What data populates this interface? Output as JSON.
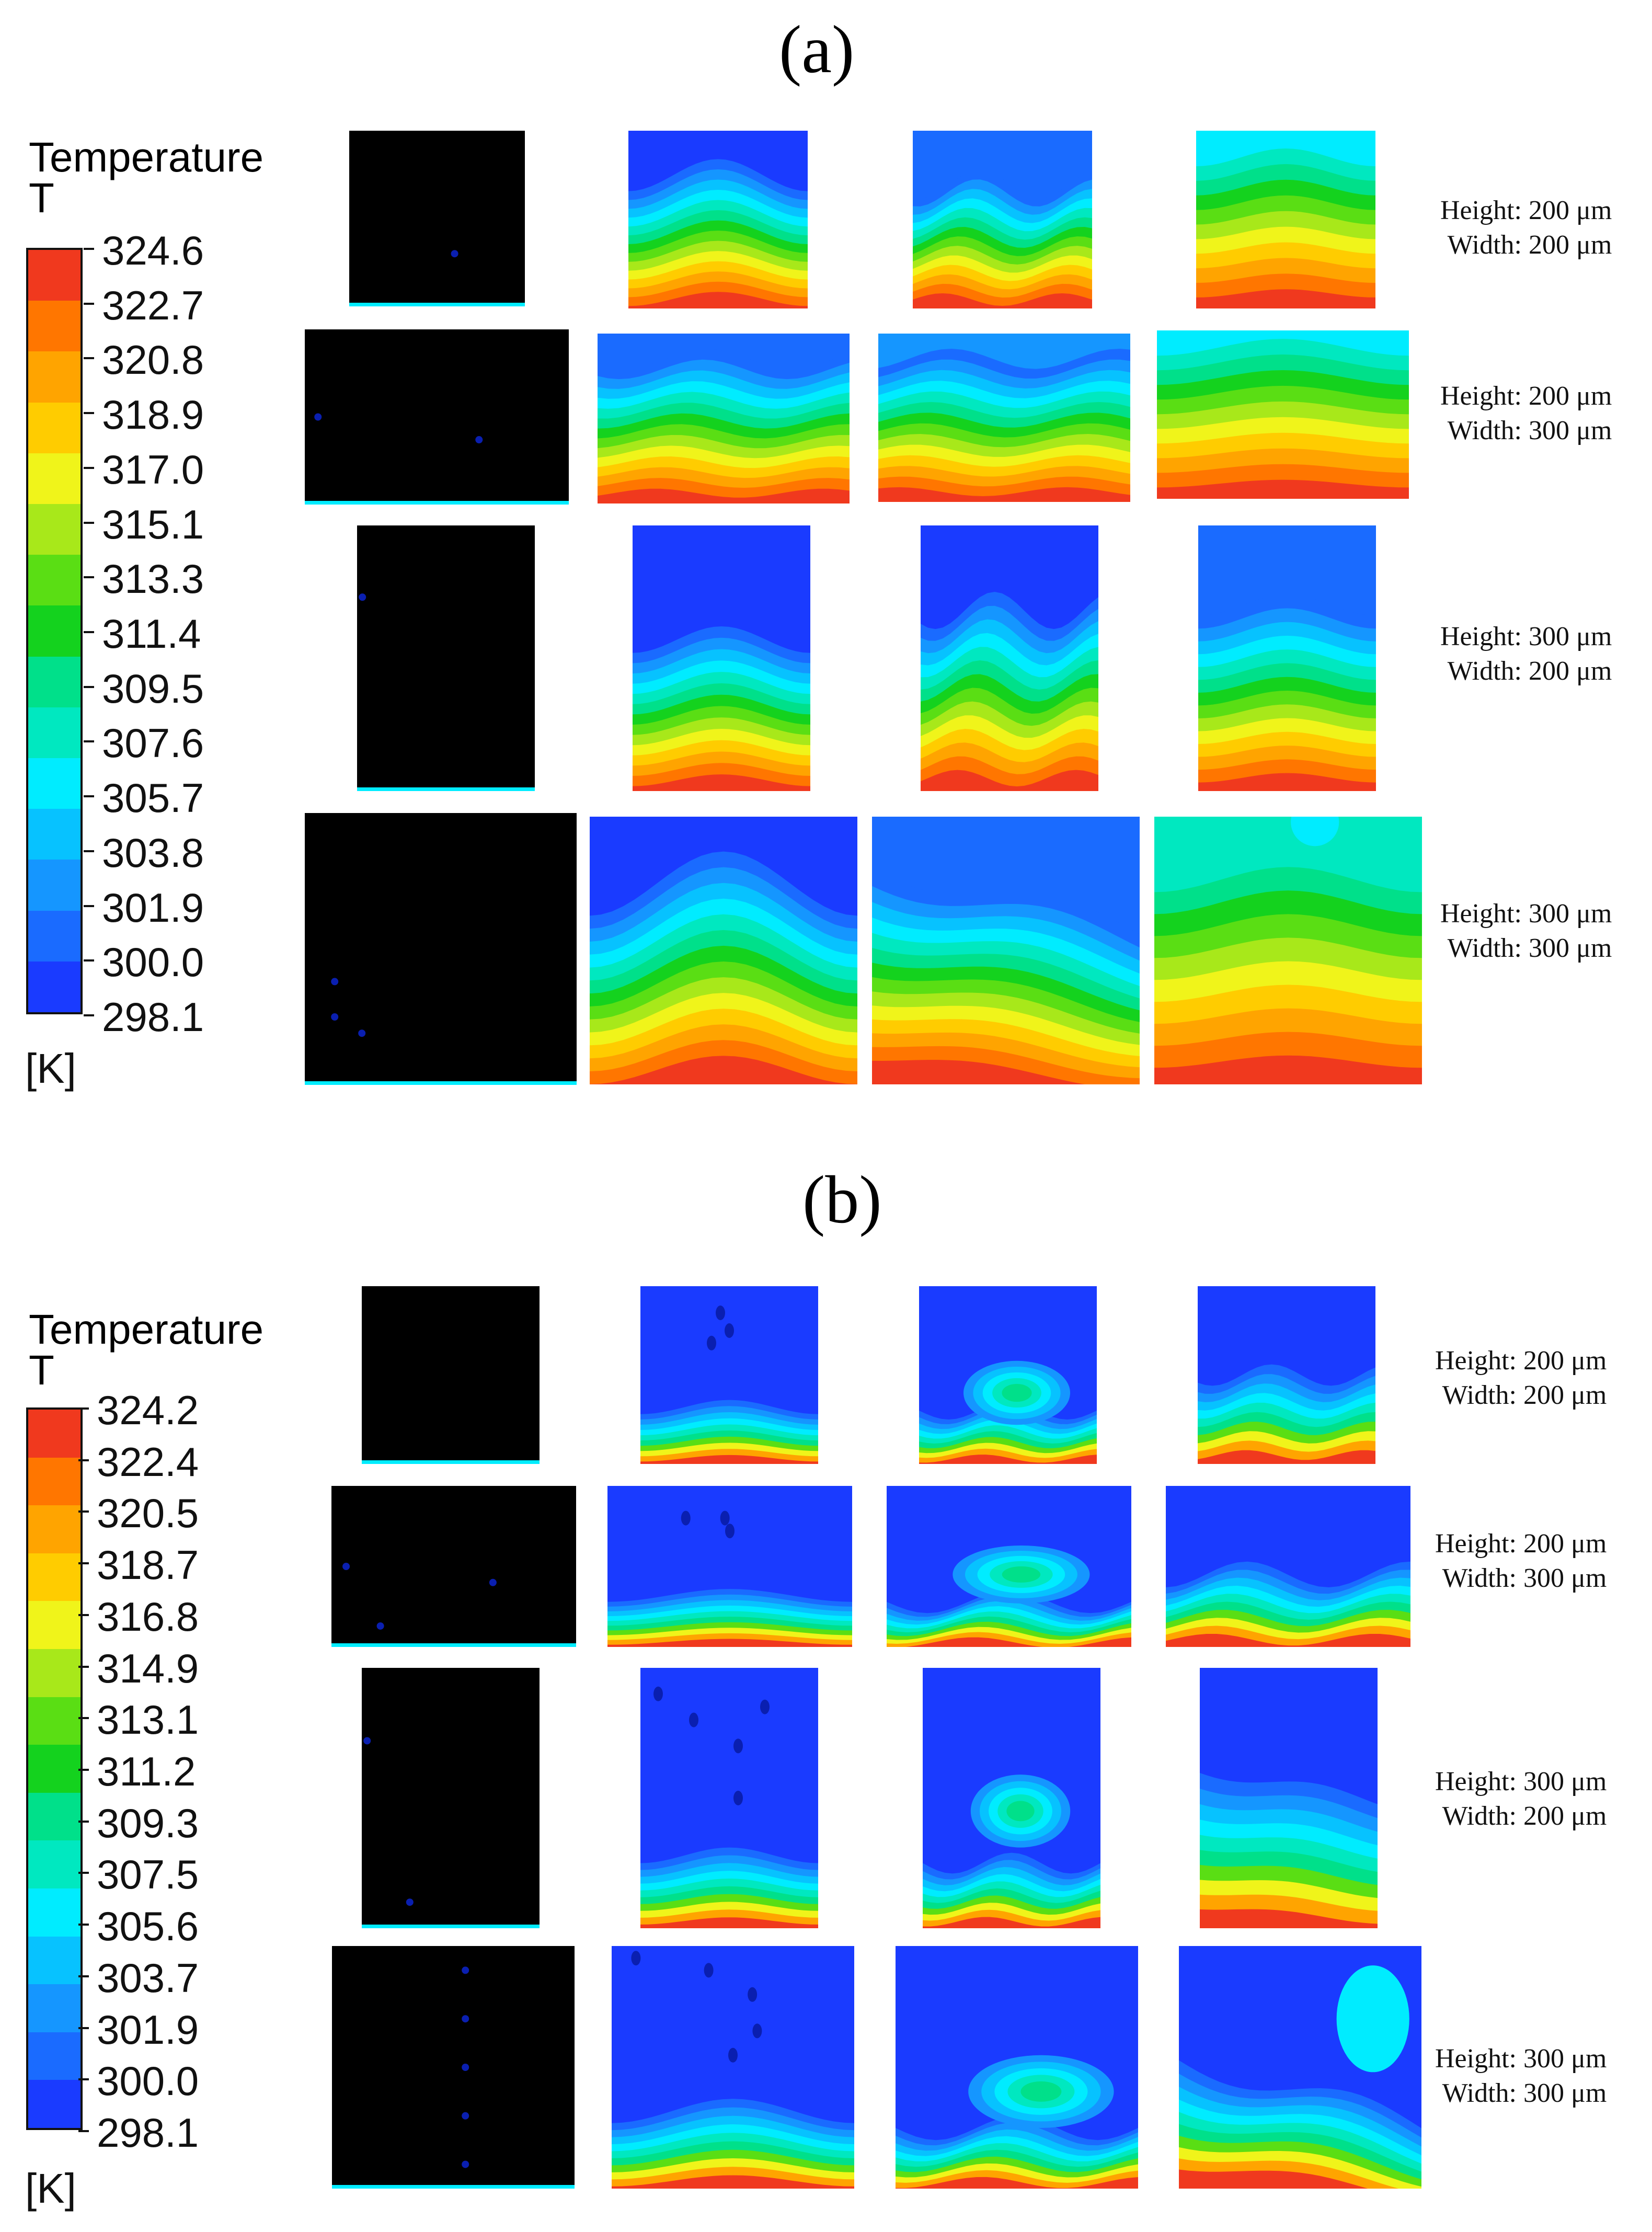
{
  "figure": {
    "panels": [
      {
        "label": "(a)",
        "legend": {
          "title_line1": "Temperature",
          "title_line2": "T",
          "unit": "[K]",
          "ticks": [
            "324.6",
            "322.7",
            "320.8",
            "318.9",
            "317.0",
            "315.1",
            "313.3",
            "311.4",
            "309.5",
            "307.6",
            "305.7",
            "303.8",
            "301.9",
            "300.0",
            "298.1"
          ]
        },
        "rows": [
          {
            "height_label": "Height: 200 μm",
            "width_label": "Width: 200 μm"
          },
          {
            "height_label": "Height: 200 μm",
            "width_label": "Width: 300 μm"
          },
          {
            "height_label": "Height: 300 μm",
            "width_label": "Width: 200 μm"
          },
          {
            "height_label": "Height: 300 μm",
            "width_label": "Width: 300 μm"
          }
        ]
      },
      {
        "label": "(b)",
        "legend": {
          "title_line1": "Temperature",
          "title_line2": "T",
          "unit": "[K]",
          "ticks": [
            "324.2",
            "322.4",
            "320.5",
            "318.7",
            "316.8",
            "314.9",
            "313.1",
            "311.2",
            "309.3",
            "307.5",
            "305.6",
            "303.7",
            "301.9",
            "300.0",
            "298.1"
          ]
        },
        "rows": [
          {
            "height_label": "Height: 200 μm",
            "width_label": "Width: 200 μm"
          },
          {
            "height_label": "Height: 200 μm",
            "width_label": "Width: 300 μm"
          },
          {
            "height_label": "Height: 300 μm",
            "width_label": "Width: 200 μm"
          },
          {
            "height_label": "Height: 300 μm",
            "width_label": "Width: 300 μm"
          }
        ]
      }
    ]
  },
  "colors": {
    "palette": [
      "#1a3bff",
      "#1a6bff",
      "#1596ff",
      "#07c2ff",
      "#00ecff",
      "#00e8c0",
      "#00e08a",
      "#14d21e",
      "#5ade14",
      "#a8e81a",
      "#f0f41a",
      "#ffcc00",
      "#ffa400",
      "#ff7600",
      "#f0391e"
    ]
  }
}
